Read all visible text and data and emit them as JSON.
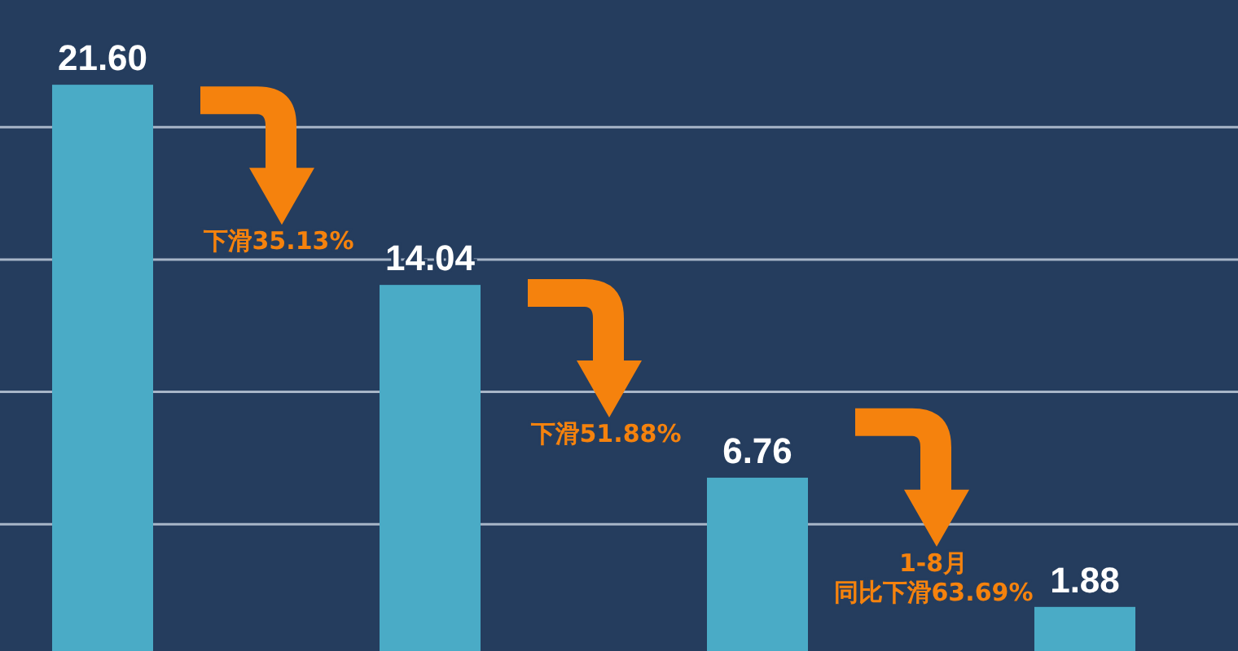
{
  "chart_data": {
    "type": "bar",
    "categories": [
      null,
      null,
      null,
      null
    ],
    "values": [
      21.6,
      14.04,
      6.76,
      1.88
    ],
    "value_labels": [
      "21.60",
      "14.04",
      "6.76",
      "1.88"
    ],
    "color": "#4aabc6",
    "grid": "y",
    "yticks": [
      {
        "value": 5,
        "label": null
      },
      {
        "value": 10,
        "label": null
      },
      {
        "value": 15,
        "label": null
      },
      {
        "value": 20,
        "label": null
      }
    ],
    "annotations": [
      "下滑35.13%",
      "下滑51.88%",
      "1-8月",
      "同比下滑63.69%"
    ]
  }
}
